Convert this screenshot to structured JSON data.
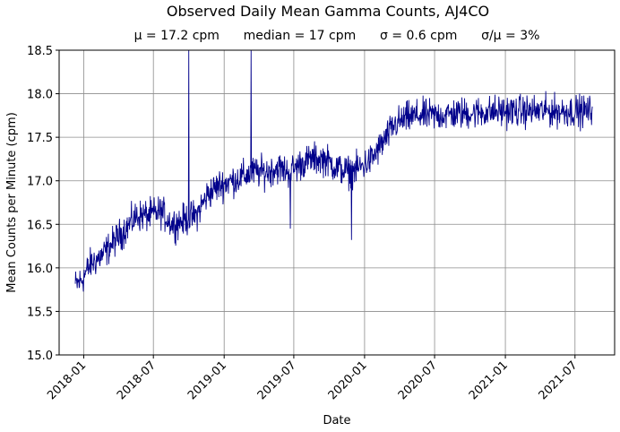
{
  "chart_data": {
    "type": "line",
    "title": "Observed Daily Mean Gamma Counts, AJ4CO",
    "subtitle": "μ = 17.2 cpm      median = 17 cpm      σ = 0.6 cpm      σ/μ = 3%",
    "xlabel": "Date",
    "ylabel": "Mean Counts per Minute (cpm)",
    "xlim": [
      "2017-10-29",
      "2021-10-12"
    ],
    "ylim": [
      15.0,
      18.5
    ],
    "yticks": [
      15.0,
      15.5,
      16.0,
      16.5,
      17.0,
      17.5,
      18.0,
      18.5
    ],
    "ytick_labels": [
      "15.0",
      "15.5",
      "16.0",
      "16.5",
      "17.0",
      "17.5",
      "18.0",
      "18.5"
    ],
    "xticks": [
      "2018-01-01",
      "2018-07-01",
      "2019-01-01",
      "2019-07-01",
      "2020-01-01",
      "2020-07-01",
      "2021-01-01",
      "2021-07-01"
    ],
    "xtick_labels": [
      "2018-01",
      "2018-07",
      "2019-01",
      "2019-07",
      "2020-01",
      "2020-07",
      "2021-01",
      "2021-07"
    ],
    "grid": true,
    "line_color": "#00008b",
    "trend": [
      {
        "date": "2017-12-10",
        "value": 15.8
      },
      {
        "date": "2017-12-25",
        "value": 15.85
      },
      {
        "date": "2018-01-20",
        "value": 16.05
      },
      {
        "date": "2018-02-20",
        "value": 16.15
      },
      {
        "date": "2018-03-20",
        "value": 16.3
      },
      {
        "date": "2018-04-20",
        "value": 16.45
      },
      {
        "date": "2018-05-20",
        "value": 16.6
      },
      {
        "date": "2018-06-20",
        "value": 16.6
      },
      {
        "date": "2018-07-20",
        "value": 16.65
      },
      {
        "date": "2018-08-20",
        "value": 16.5
      },
      {
        "date": "2018-09-20",
        "value": 16.55
      },
      {
        "date": "2018-10-20",
        "value": 16.6
      },
      {
        "date": "2018-11-20",
        "value": 16.85
      },
      {
        "date": "2018-12-20",
        "value": 16.95
      },
      {
        "date": "2019-01-20",
        "value": 17.0
      },
      {
        "date": "2019-02-20",
        "value": 17.05
      },
      {
        "date": "2019-03-20",
        "value": 17.1
      },
      {
        "date": "2019-04-20",
        "value": 17.1
      },
      {
        "date": "2019-05-20",
        "value": 17.15
      },
      {
        "date": "2019-06-20",
        "value": 17.1
      },
      {
        "date": "2019-07-20",
        "value": 17.2
      },
      {
        "date": "2019-08-20",
        "value": 17.25
      },
      {
        "date": "2019-09-20",
        "value": 17.25
      },
      {
        "date": "2019-10-20",
        "value": 17.15
      },
      {
        "date": "2019-11-20",
        "value": 17.1
      },
      {
        "date": "2019-12-20",
        "value": 17.15
      },
      {
        "date": "2020-01-20",
        "value": 17.25
      },
      {
        "date": "2020-02-20",
        "value": 17.45
      },
      {
        "date": "2020-03-20",
        "value": 17.65
      },
      {
        "date": "2020-04-20",
        "value": 17.72
      },
      {
        "date": "2020-05-20",
        "value": 17.75
      },
      {
        "date": "2020-07-01",
        "value": 17.75
      },
      {
        "date": "2020-10-01",
        "value": 17.78
      },
      {
        "date": "2021-01-01",
        "value": 17.8
      },
      {
        "date": "2021-04-01",
        "value": 17.8
      },
      {
        "date": "2021-08-15",
        "value": 17.8
      }
    ],
    "noise": 0.13,
    "events": [
      {
        "date": "2018-10-01",
        "value": 18.5
      },
      {
        "date": "2019-03-12",
        "value": 18.5
      },
      {
        "date": "2019-06-22",
        "value": 16.45
      },
      {
        "date": "2019-11-28",
        "value": 16.32
      }
    ]
  }
}
